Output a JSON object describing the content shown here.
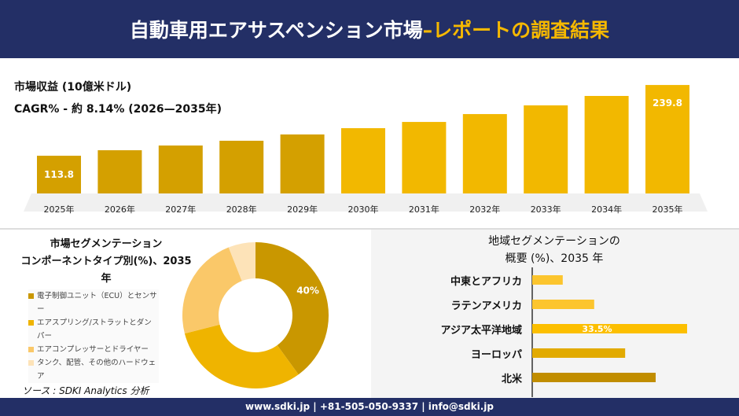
{
  "header": {
    "title_main": "自動車用エアサスペンション市場",
    "title_accent": " –レポートの調査結果"
  },
  "market": {
    "label": "市場収益 (10億米ドル)",
    "cagr": "CAGR% - 約 8.14% (2026—2035年)"
  },
  "chart_data": [
    {
      "type": "bar",
      "categories": [
        "2025年",
        "2026年",
        "2027年",
        "2028年",
        "2029年",
        "2030年",
        "2031年",
        "2032年",
        "2033年",
        "2034年",
        "2035年"
      ],
      "values": [
        113.8,
        123.6,
        132,
        140.5,
        151.7,
        162.9,
        174,
        188,
        203.5,
        220.3,
        239.8
      ],
      "data_labels": {
        "0": "113.8",
        "10": "239.8"
      },
      "colors": [
        "#d4a000",
        "#f2b800"
      ]
    },
    {
      "type": "pie",
      "title": "市場セグメンテーション\nコンポーネントタイプ別(%)、2035年",
      "title_lines": [
        "市場セグメンテーション",
        "コンポーネントタイプ別(%)、2035年"
      ],
      "categories": [
        "電子制御ユニット（ECU）とセンサー",
        "エアスプリング/ストラットとダンパー",
        "エアコンプレッサーとドライヤー",
        "タンク、配管、その他のハードウェア"
      ],
      "values": [
        40,
        31,
        23,
        6
      ],
      "data_labels": {
        "0": "40%"
      },
      "colors": [
        "#c99700",
        "#efb400",
        "#fac869",
        "#fde3b8"
      ],
      "legend": "left"
    },
    {
      "type": "bar",
      "orientation": "horizontal",
      "title_lines": [
        "地域セグメンテーションの",
        "概要 (%)、2035 年"
      ],
      "categories": [
        "中東とアフリカ",
        "ラテンアメリカ",
        "アジア太平洋地域",
        "ヨーロッパ",
        "北米"
      ],
      "values": [
        6.6,
        13.4,
        33.5,
        20.1,
        26.7
      ],
      "data_labels": {
        "2": "33.5%"
      },
      "colors": [
        "#fcc52e",
        "#fcc52e",
        "#fcbf00",
        "#e2aa00",
        "#c18d00"
      ]
    }
  ],
  "source": "ソース : SDKI Analytics 分析",
  "footer": "www.sdki.jp | +81-505-050-9337 | info@sdki.jp"
}
